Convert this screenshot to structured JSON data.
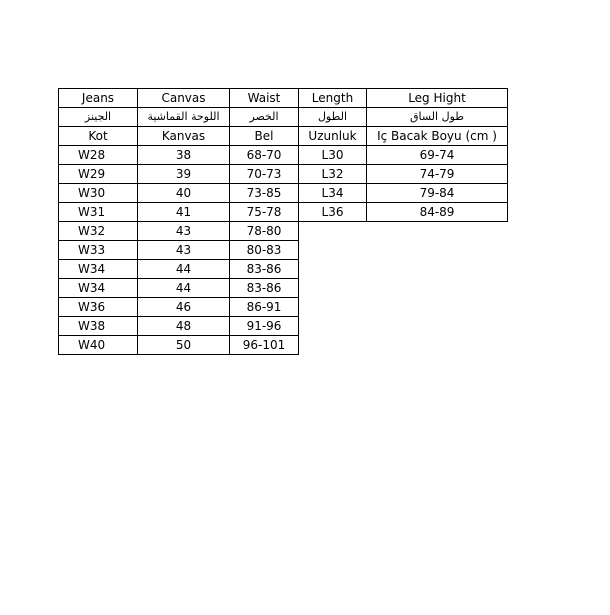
{
  "headers": {
    "english": [
      "Jeans",
      "Canvas",
      "Waist",
      "Length",
      "Leg Hight"
    ],
    "arabic": [
      "الجينز",
      "اللوحة القماشية",
      "الخصر",
      "الطول",
      "طول الساق"
    ],
    "turkish": [
      "Kot",
      "Kanvas",
      "Bel",
      "Uzunluk",
      "Iç Bacak Boyu (cm )"
    ]
  },
  "rows": [
    [
      "W28",
      "38",
      "68-70",
      "L30",
      "69-74"
    ],
    [
      "W29",
      "39",
      "70-73",
      "L32",
      "74-79"
    ],
    [
      "W30",
      "40",
      "73-85",
      "L34",
      "79-84"
    ],
    [
      "W31",
      "41",
      "75-78",
      "L36",
      "84-89"
    ],
    [
      "W32",
      "43",
      "78-80"
    ],
    [
      "W33",
      "43",
      "80-83"
    ],
    [
      "W34",
      "44",
      "83-86"
    ],
    [
      "W34",
      "44",
      "83-86"
    ],
    [
      "W36",
      "46",
      "86-91"
    ],
    [
      "W38",
      "48",
      "91-96"
    ],
    [
      "W40",
      "50",
      "96-101"
    ]
  ]
}
